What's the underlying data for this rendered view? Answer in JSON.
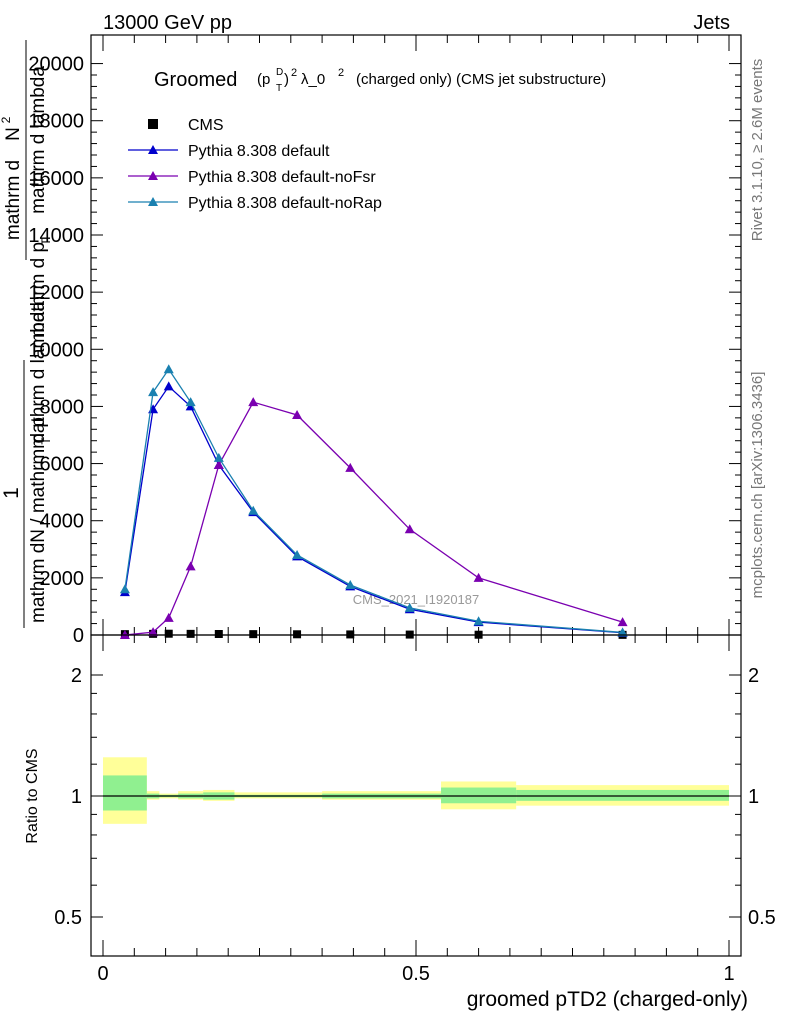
{
  "header": {
    "left": "13000 GeV pp",
    "right": "Jets"
  },
  "side_labels": {
    "rivet": "Rivet 3.1.10, ≥ 2.6M events",
    "mcplots": "mcplots.cern.ch [arXiv:1306.3436]"
  },
  "watermark": "CMS_2021_I1920187",
  "main": {
    "title": {
      "prefix": "Groomed",
      "p": "(p",
      "p_sub": "T",
      "p_sup": "D",
      "close": ")",
      "sq1": "2",
      "lambda": "λ_0",
      "sq2": "2",
      "suffix": "(charged only) (CMS jet substructure)"
    },
    "ylabel": {
      "numerator_top": "mathrm d",
      "numerator_N": "N",
      "numerator_sup": "2",
      "ratio1": "mathrm d p",
      "ratio1_sub": "T",
      "ratio1_rest": "mathrm d lambda",
      "one": "1",
      "denominator": "mathrm dN / mathrm d p",
      "denominator_sub": "T",
      "denominator_rest": "mathrm d lambda"
    },
    "legend": [
      {
        "label": "CMS",
        "color": "#000000",
        "marker": "square"
      },
      {
        "label": "Pythia 8.308 default",
        "color": "#0000cc",
        "marker": "triangle"
      },
      {
        "label": "Pythia 8.308 default-noFsr",
        "color": "#7a00b0",
        "marker": "triangle"
      },
      {
        "label": "Pythia 8.308 default-noRap",
        "color": "#1a80b0",
        "marker": "triangle"
      }
    ]
  },
  "ratio": {
    "ylabel": "Ratio to CMS",
    "xlabel": "groomed pTD2 (charged-only)"
  },
  "chart_data": [
    {
      "type": "line",
      "panel": "main",
      "xlim": [
        0,
        1
      ],
      "ylim": [
        0,
        21000
      ],
      "yticks": [
        0,
        2000,
        4000,
        6000,
        8000,
        10000,
        12000,
        14000,
        16000,
        18000,
        20000
      ],
      "ytick_labels": [
        "0",
        "2000",
        "4000",
        "6000",
        "8000",
        "10000",
        "12000",
        "14000",
        "16000",
        "18000",
        "20000"
      ],
      "series": [
        {
          "name": "CMS",
          "x": [
            0.035,
            0.08,
            0.105,
            0.14,
            0.185,
            0.24,
            0.31,
            0.395,
            0.49,
            0.6,
            0.83
          ],
          "y": [
            30,
            40,
            45,
            40,
            35,
            30,
            25,
            20,
            15,
            10,
            5
          ]
        },
        {
          "name": "Pythia 8.308 default",
          "x": [
            0.035,
            0.08,
            0.105,
            0.14,
            0.185,
            0.24,
            0.31,
            0.395,
            0.49,
            0.6,
            0.83
          ],
          "y": [
            1500,
            7900,
            8700,
            8000,
            5950,
            4300,
            2750,
            1700,
            900,
            450,
            80
          ]
        },
        {
          "name": "Pythia 8.308 default-noFsr",
          "x": [
            0.035,
            0.08,
            0.105,
            0.14,
            0.185,
            0.24,
            0.31,
            0.395,
            0.49,
            0.6,
            0.83
          ],
          "y": [
            0,
            100,
            600,
            2400,
            5950,
            8150,
            7700,
            5850,
            3700,
            2000,
            450
          ]
        },
        {
          "name": "Pythia 8.308 default-noRap",
          "x": [
            0.035,
            0.08,
            0.105,
            0.14,
            0.185,
            0.24,
            0.31,
            0.395,
            0.49,
            0.6,
            0.83
          ],
          "y": [
            1600,
            8500,
            9300,
            8150,
            6200,
            4350,
            2800,
            1750,
            950,
            480,
            90
          ]
        }
      ]
    },
    {
      "type": "area",
      "panel": "ratio",
      "xlabel": "groomed pTD2 (charged-only)",
      "ylabel": "Ratio to CMS",
      "xlim": [
        0,
        1
      ],
      "ylim": [
        0.4,
        2.4
      ],
      "xticks": [
        0,
        0.5,
        1
      ],
      "xtick_labels": [
        "0",
        "0.5",
        "1"
      ],
      "yticks": [
        0.5,
        1,
        2
      ],
      "ytick_labels": [
        "0.5",
        "1",
        "2"
      ],
      "bins": [
        {
          "x0": 0.0,
          "x1": 0.07,
          "stat_lo": 0.88,
          "stat_hi": 1.17,
          "tot_lo": 0.77,
          "tot_hi": 1.32
        },
        {
          "x0": 0.07,
          "x1": 0.09,
          "stat_lo": 0.98,
          "stat_hi": 1.02,
          "tot_lo": 0.97,
          "tot_hi": 1.04
        },
        {
          "x0": 0.09,
          "x1": 0.12,
          "stat_lo": 0.99,
          "stat_hi": 1.01,
          "tot_lo": 0.98,
          "tot_hi": 1.02
        },
        {
          "x0": 0.12,
          "x1": 0.16,
          "stat_lo": 0.98,
          "stat_hi": 1.02,
          "tot_lo": 0.97,
          "tot_hi": 1.04
        },
        {
          "x0": 0.16,
          "x1": 0.21,
          "stat_lo": 0.97,
          "stat_hi": 1.03,
          "tot_lo": 0.96,
          "tot_hi": 1.05
        },
        {
          "x0": 0.21,
          "x1": 0.35,
          "stat_lo": 0.99,
          "stat_hi": 1.01,
          "tot_lo": 0.98,
          "tot_hi": 1.03
        },
        {
          "x0": 0.35,
          "x1": 0.54,
          "stat_lo": 0.98,
          "stat_hi": 1.02,
          "tot_lo": 0.97,
          "tot_hi": 1.04
        },
        {
          "x0": 0.54,
          "x1": 0.66,
          "stat_lo": 0.94,
          "stat_hi": 1.07,
          "tot_lo": 0.89,
          "tot_hi": 1.12
        },
        {
          "x0": 0.66,
          "x1": 1.0,
          "stat_lo": 0.96,
          "stat_hi": 1.05,
          "tot_lo": 0.92,
          "tot_hi": 1.09
        }
      ],
      "band_colors": {
        "stat": "#90f090",
        "total": "#ffff99"
      }
    }
  ]
}
